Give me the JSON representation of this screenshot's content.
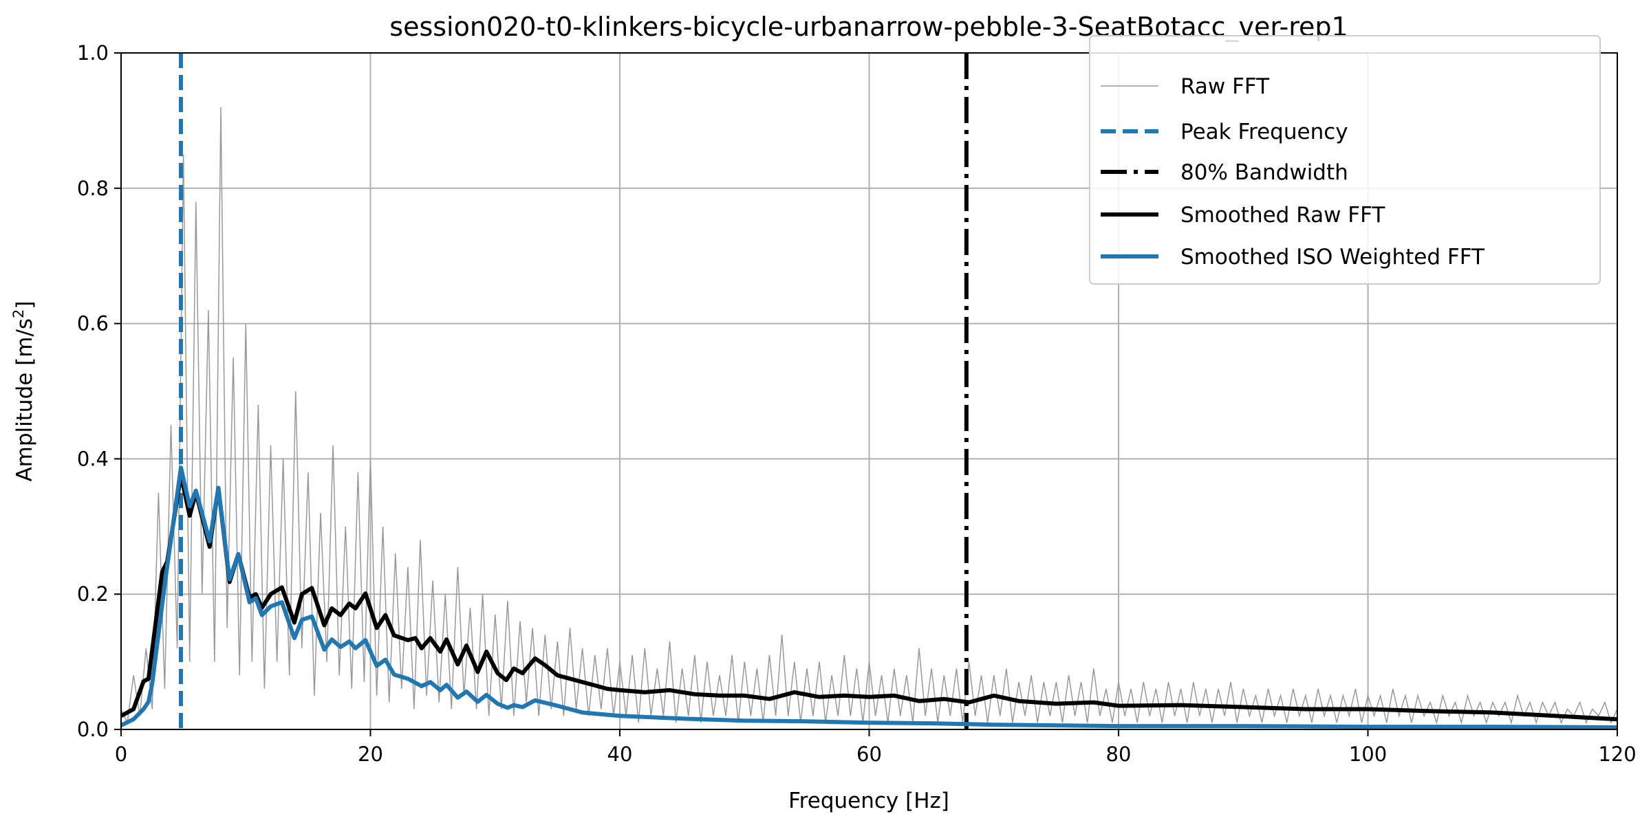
{
  "chart_data": {
    "type": "line",
    "title": "session020-t0-klinkers-bicycle-urbanarrow-pebble-3-SeatBotacc_ver-rep1",
    "xlabel": "Frequency [Hz]",
    "ylabel_main": "Amplitude [m/s",
    "ylabel_sup": "2",
    "ylabel_end": "]",
    "xlim": [
      0,
      120
    ],
    "ylim": [
      0,
      1.0
    ],
    "xticks": [
      "0",
      "20",
      "40",
      "60",
      "80",
      "100",
      "120"
    ],
    "yticks": [
      "0.0",
      "0.2",
      "0.4",
      "0.6",
      "0.8",
      "1.0"
    ],
    "grid": true,
    "legend_position": "top-right",
    "legend": [
      "Raw FFT",
      "Peak Frequency",
      "80% Bandwidth",
      "Smoothed Raw FFT",
      "Smoothed ISO Weighted FFT"
    ],
    "colors": {
      "raw": "#999999",
      "peak": "#1f77b4",
      "bandwidth": "#000000",
      "smoothed_raw": "#000000",
      "smoothed_iso": "#1f77b4"
    },
    "peak_frequency_hz": 4.8,
    "bandwidth_80_hz": 67.8,
    "raw_fft_amplitude": [
      0.03,
      0.01,
      0.08,
      0.02,
      0.12,
      0.03,
      0.35,
      0.06,
      0.45,
      0.12,
      0.85,
      0.1,
      0.78,
      0.2,
      0.62,
      0.1,
      0.92,
      0.15,
      0.55,
      0.08,
      0.6,
      0.1,
      0.48,
      0.06,
      0.42,
      0.1,
      0.4,
      0.08,
      0.5,
      0.12,
      0.38,
      0.05,
      0.32,
      0.1,
      0.42,
      0.08,
      0.3,
      0.06,
      0.38,
      0.07,
      0.4,
      0.05,
      0.3,
      0.04,
      0.26,
      0.06,
      0.24,
      0.03,
      0.28,
      0.05,
      0.22,
      0.04,
      0.2,
      0.03,
      0.24,
      0.05,
      0.18,
      0.03,
      0.2,
      0.02,
      0.17,
      0.03,
      0.19,
      0.02,
      0.16,
      0.04,
      0.15,
      0.02,
      0.14,
      0.03,
      0.13,
      0.02,
      0.15,
      0.03,
      0.12,
      0.02,
      0.11,
      0.03,
      0.12,
      0.02,
      0.1,
      0.02,
      0.11,
      0.01,
      0.12,
      0.02,
      0.09,
      0.02,
      0.13,
      0.01,
      0.09,
      0.02,
      0.11,
      0.01,
      0.1,
      0.02,
      0.08,
      0.02,
      0.11,
      0.01,
      0.1,
      0.02,
      0.09,
      0.01,
      0.11,
      0.02,
      0.14,
      0.02,
      0.1,
      0.01,
      0.09,
      0.02,
      0.1,
      0.01,
      0.08,
      0.02,
      0.11,
      0.02,
      0.09,
      0.01,
      0.1,
      0.02,
      0.08,
      0.01,
      0.09,
      0.02,
      0.08,
      0.01,
      0.12,
      0.02,
      0.09,
      0.01,
      0.08,
      0.02,
      0.09,
      0.01,
      0.1,
      0.02,
      0.08,
      0.01,
      0.08,
      0.02,
      0.09,
      0.01,
      0.07,
      0.02,
      0.08,
      0.01,
      0.07,
      0.02,
      0.07,
      0.01,
      0.08,
      0.02,
      0.07,
      0.01,
      0.09,
      0.02,
      0.06,
      0.01,
      0.07,
      0.02,
      0.06,
      0.01,
      0.07,
      0.02,
      0.06,
      0.01,
      0.07,
      0.02,
      0.06,
      0.01,
      0.07,
      0.02,
      0.06,
      0.01,
      0.06,
      0.02,
      0.07,
      0.01,
      0.06,
      0.02,
      0.05,
      0.01,
      0.06,
      0.02,
      0.05,
      0.01,
      0.06,
      0.02,
      0.05,
      0.01,
      0.06,
      0.02,
      0.05,
      0.01,
      0.05,
      0.02,
      0.06,
      0.01,
      0.05,
      0.02,
      0.05,
      0.01,
      0.06,
      0.02,
      0.05,
      0.01,
      0.05,
      0.02,
      0.04,
      0.01,
      0.05,
      0.02,
      0.04,
      0.01,
      0.05,
      0.02,
      0.04,
      0.01,
      0.04,
      0.02,
      0.04,
      0.01,
      0.05,
      0.02,
      0.04,
      0.01,
      0.04,
      0.02,
      0.04,
      0.01,
      0.03,
      0.02,
      0.04,
      0.01,
      0.03,
      0.02,
      0.04,
      0.01,
      0.03
    ],
    "smoothed_raw_fft": [
      [
        0,
        0.02
      ],
      [
        1,
        0.03
      ],
      [
        1.8,
        0.071
      ],
      [
        2.2,
        0.075
      ],
      [
        3.3,
        0.233
      ],
      [
        3.7,
        0.248
      ],
      [
        4.8,
        0.376
      ],
      [
        5.5,
        0.316
      ],
      [
        6.0,
        0.35
      ],
      [
        7.1,
        0.27
      ],
      [
        7.8,
        0.357
      ],
      [
        8.7,
        0.218
      ],
      [
        9.4,
        0.259
      ],
      [
        10.3,
        0.195
      ],
      [
        10.8,
        0.2
      ],
      [
        11.3,
        0.18
      ],
      [
        12.0,
        0.2
      ],
      [
        12.9,
        0.21
      ],
      [
        13.9,
        0.158
      ],
      [
        14.5,
        0.2
      ],
      [
        15.3,
        0.209
      ],
      [
        16.3,
        0.154
      ],
      [
        16.9,
        0.179
      ],
      [
        17.6,
        0.169
      ],
      [
        18.3,
        0.186
      ],
      [
        18.8,
        0.179
      ],
      [
        19.6,
        0.201
      ],
      [
        20.5,
        0.15
      ],
      [
        21.2,
        0.169
      ],
      [
        21.9,
        0.139
      ],
      [
        23.0,
        0.132
      ],
      [
        23.6,
        0.135
      ],
      [
        24.1,
        0.12
      ],
      [
        24.8,
        0.135
      ],
      [
        25.6,
        0.115
      ],
      [
        26.1,
        0.133
      ],
      [
        27.0,
        0.096
      ],
      [
        27.7,
        0.124
      ],
      [
        28.6,
        0.085
      ],
      [
        29.3,
        0.115
      ],
      [
        30.2,
        0.083
      ],
      [
        30.9,
        0.073
      ],
      [
        31.5,
        0.09
      ],
      [
        32.2,
        0.083
      ],
      [
        33.2,
        0.105
      ],
      [
        34,
        0.095
      ],
      [
        35,
        0.08
      ],
      [
        36,
        0.075
      ],
      [
        37,
        0.07
      ],
      [
        38,
        0.065
      ],
      [
        39,
        0.06
      ],
      [
        40,
        0.058
      ],
      [
        42,
        0.055
      ],
      [
        44,
        0.058
      ],
      [
        46,
        0.052
      ],
      [
        48,
        0.05
      ],
      [
        50,
        0.05
      ],
      [
        52,
        0.045
      ],
      [
        54,
        0.055
      ],
      [
        56,
        0.048
      ],
      [
        58,
        0.05
      ],
      [
        60,
        0.048
      ],
      [
        62,
        0.05
      ],
      [
        64,
        0.042
      ],
      [
        66,
        0.045
      ],
      [
        68,
        0.04
      ],
      [
        70,
        0.05
      ],
      [
        72,
        0.042
      ],
      [
        75,
        0.038
      ],
      [
        78,
        0.04
      ],
      [
        80,
        0.035
      ],
      [
        85,
        0.036
      ],
      [
        90,
        0.033
      ],
      [
        95,
        0.03
      ],
      [
        100,
        0.03
      ],
      [
        105,
        0.027
      ],
      [
        110,
        0.025
      ],
      [
        115,
        0.02
      ],
      [
        120,
        0.015
      ]
    ],
    "smoothed_iso_weighted_fft": [
      [
        0,
        0.006
      ],
      [
        1,
        0.015
      ],
      [
        1.8,
        0.03
      ],
      [
        2.2,
        0.041
      ],
      [
        2.5,
        0.068
      ],
      [
        3.5,
        0.214
      ],
      [
        4.8,
        0.387
      ],
      [
        5.5,
        0.33
      ],
      [
        6.0,
        0.353
      ],
      [
        7.1,
        0.278
      ],
      [
        7.8,
        0.357
      ],
      [
        8.7,
        0.222
      ],
      [
        9.4,
        0.259
      ],
      [
        10.3,
        0.188
      ],
      [
        10.8,
        0.194
      ],
      [
        11.3,
        0.169
      ],
      [
        12.0,
        0.182
      ],
      [
        12.9,
        0.188
      ],
      [
        13.9,
        0.135
      ],
      [
        14.5,
        0.162
      ],
      [
        15.3,
        0.167
      ],
      [
        16.3,
        0.118
      ],
      [
        16.9,
        0.133
      ],
      [
        17.6,
        0.122
      ],
      [
        18.3,
        0.13
      ],
      [
        18.8,
        0.12
      ],
      [
        19.6,
        0.132
      ],
      [
        20.5,
        0.094
      ],
      [
        21.2,
        0.103
      ],
      [
        21.9,
        0.081
      ],
      [
        23.0,
        0.075
      ],
      [
        24.1,
        0.064
      ],
      [
        24.8,
        0.07
      ],
      [
        25.6,
        0.058
      ],
      [
        26.1,
        0.066
      ],
      [
        27.0,
        0.047
      ],
      [
        27.7,
        0.056
      ],
      [
        28.6,
        0.041
      ],
      [
        29.3,
        0.051
      ],
      [
        30.2,
        0.038
      ],
      [
        31.0,
        0.032
      ],
      [
        31.5,
        0.036
      ],
      [
        32.2,
        0.033
      ],
      [
        33.2,
        0.043
      ],
      [
        35,
        0.035
      ],
      [
        37,
        0.025
      ],
      [
        40,
        0.02
      ],
      [
        45,
        0.016
      ],
      [
        50,
        0.013
      ],
      [
        55,
        0.012
      ],
      [
        60,
        0.01
      ],
      [
        65,
        0.009
      ],
      [
        70,
        0.007
      ],
      [
        80,
        0.005
      ],
      [
        90,
        0.005
      ],
      [
        100,
        0.004
      ],
      [
        110,
        0.004
      ],
      [
        120,
        0.003
      ]
    ]
  }
}
